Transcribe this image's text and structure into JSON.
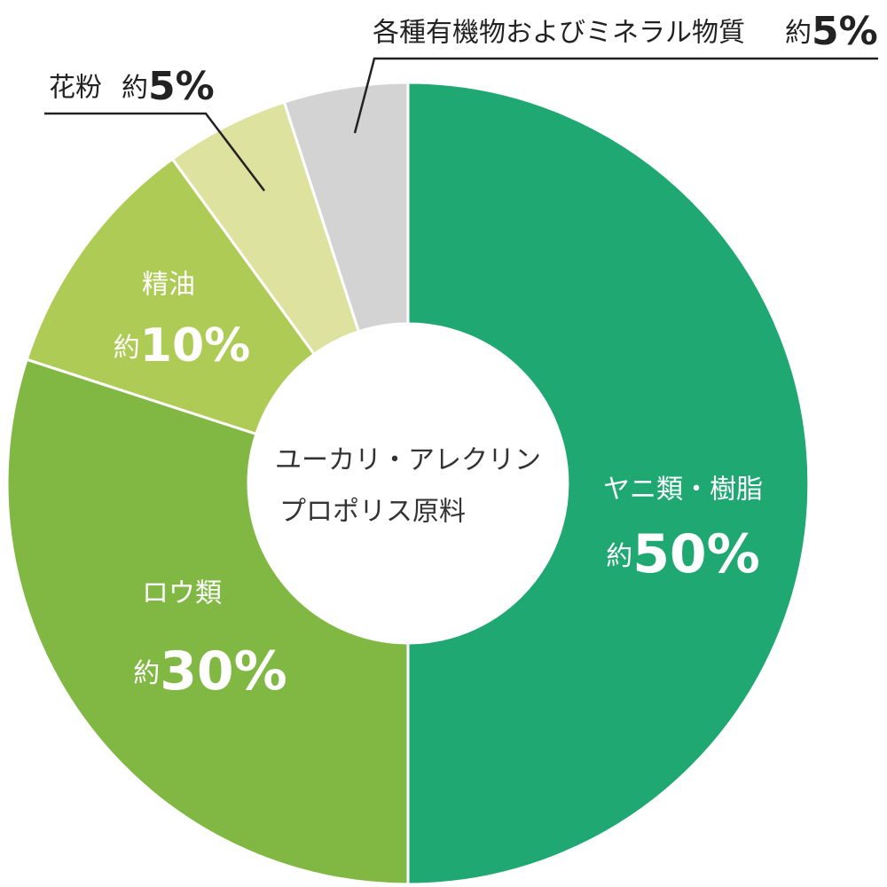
{
  "chart_data": {
    "type": "donut",
    "categories": [
      "ヤニ類・樹脂",
      "ロウ類",
      "精油",
      "花粉",
      "各種有機物およびミネラル物質"
    ],
    "values": [
      50,
      30,
      10,
      5,
      5
    ],
    "value_labels": [
      "約50%",
      "約30%",
      "約10%",
      "約5%",
      "約5%"
    ],
    "colors": [
      "#1fa872",
      "#80b843",
      "#aecb55",
      "#dde39f",
      "#d3d3d3"
    ],
    "center_label": [
      "ユーカリ・アレクリン",
      "プロポリス原料"
    ]
  }
}
